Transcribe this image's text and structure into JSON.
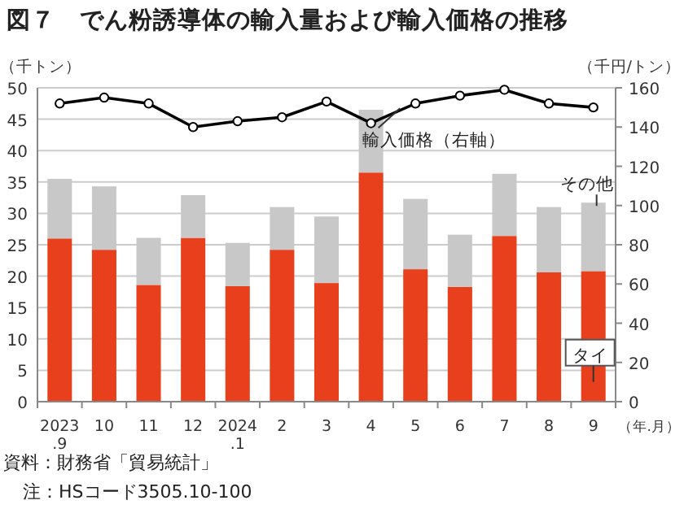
{
  "chart_data": {
    "type": "bar",
    "title": "図７　でん粉誘導体の輸入量および輸入価格の推移",
    "ylabel": "（千トン）",
    "y2label": "（千円/トン）",
    "xlabel": "（年.月）",
    "categories": [
      "2023\n.9",
      "10",
      "11",
      "12",
      "2024\n.1",
      "2",
      "3",
      "4",
      "5",
      "6",
      "7",
      "8",
      "9"
    ],
    "stacked": true,
    "legend": false,
    "grid": "y",
    "marker": "circle",
    "series": [
      {
        "name": "タイ",
        "color": "#e8401c",
        "values": [
          26.0,
          24.2,
          18.6,
          26.1,
          18.4,
          24.2,
          18.9,
          36.5,
          21.1,
          18.3,
          26.4,
          20.6,
          20.8
        ]
      },
      {
        "name": "その他",
        "color": "#c8c8c8",
        "values": [
          9.5,
          10.1,
          7.5,
          6.8,
          6.9,
          6.8,
          10.6,
          10.0,
          11.2,
          8.3,
          9.9,
          10.4,
          10.9
        ]
      },
      {
        "name": "輸入価格（右軸）",
        "type": "line",
        "axis": "y2",
        "color": "#000000",
        "values": [
          152,
          155,
          152,
          140,
          143,
          145,
          153,
          142,
          152,
          156,
          159,
          152,
          150
        ]
      }
    ],
    "ylim": [
      0,
      50
    ],
    "yticks": [
      0,
      5,
      10,
      15,
      20,
      25,
      30,
      35,
      40,
      45,
      50
    ],
    "y2lim": [
      0,
      160
    ],
    "y2ticks": [
      0,
      20,
      40,
      60,
      80,
      100,
      120,
      140,
      160
    ],
    "annotations": [
      "資料：財務省「貿易統計」",
      "注：HSコード3505.10-100"
    ]
  }
}
